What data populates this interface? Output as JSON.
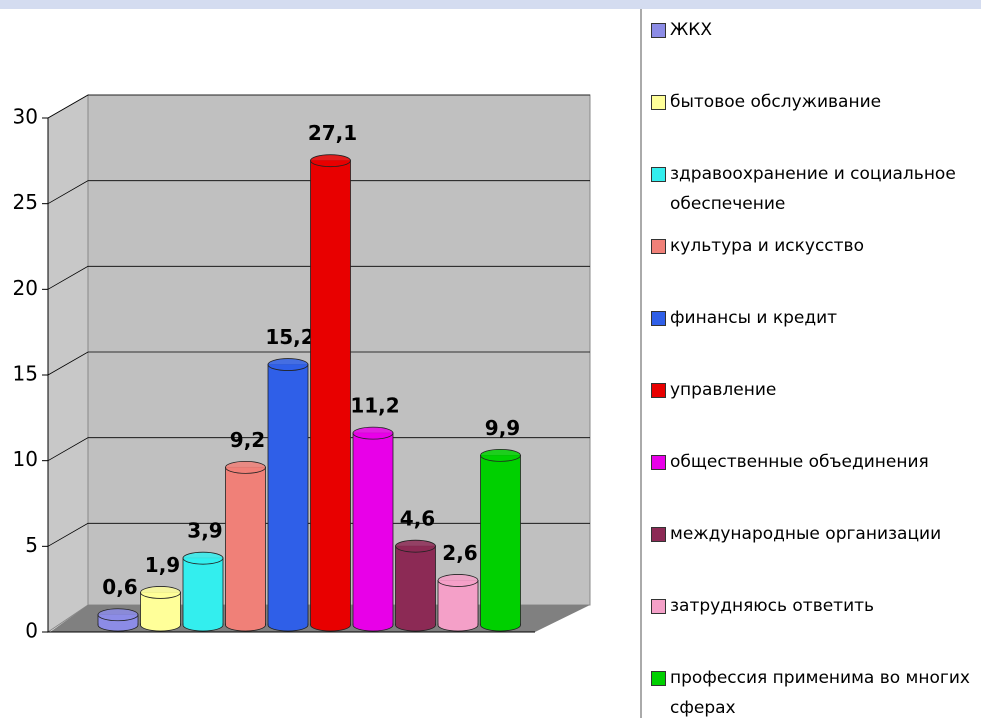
{
  "chart_data": {
    "type": "bar",
    "categories": [
      "ЖКХ",
      "бытовое обслуживание",
      "здравоохранение и социальное обеспечение",
      "культура и искусство",
      "финансы и кредит",
      "управление",
      "общественные объединения",
      "международные организации",
      "затрудняюсь ответить",
      "профессия применима во многих сферах"
    ],
    "values": [
      0.6,
      1.9,
      3.9,
      9.2,
      15.2,
      27.1,
      11.2,
      4.6,
      2.6,
      9.9
    ],
    "value_labels": [
      "0,6",
      "1,9",
      "3,9",
      "9,2",
      "15,2",
      "27,1",
      "11,2",
      "4,6",
      "2,6",
      "9,9"
    ],
    "colors": [
      "#8c8ce6",
      "#ffff99",
      "#33eeee",
      "#f08078",
      "#2f5fe8",
      "#e80000",
      "#e800e8",
      "#8c2a55",
      "#f4a0c8",
      "#00d000"
    ],
    "ylim": [
      0,
      30
    ],
    "yticks": [
      0,
      5,
      10,
      15,
      20,
      25,
      30
    ],
    "grid": true,
    "legend": "right"
  }
}
